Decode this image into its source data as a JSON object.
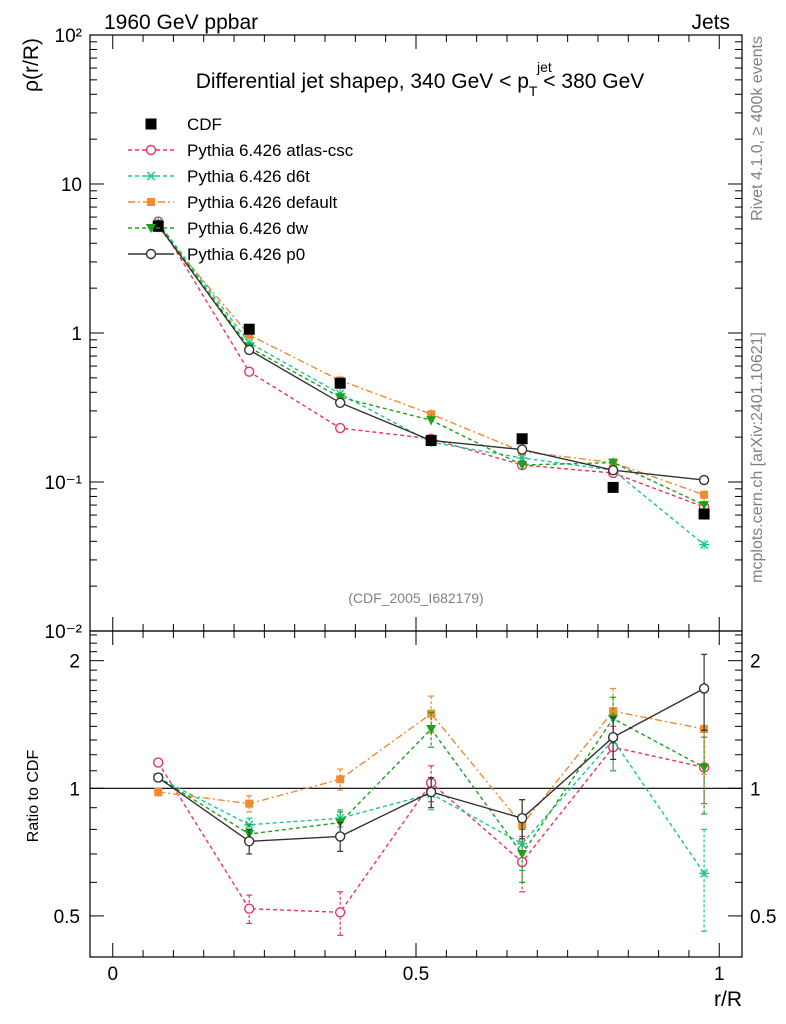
{
  "header": {
    "left": "1960 GeV ppbar",
    "right": "Jets",
    "side_top": "Rivet 4.1.0, ≥ 400k events",
    "side_bottom": "mcplots.cern.ch [arXiv:2401.10621]"
  },
  "chart_data": {
    "type": "line",
    "title": "Differential jet shapeρ, 340 GeV < p",
    "title_sup": "jet",
    "title_sub": "T",
    "title_end": " < 380 GeV",
    "analysis_tag": "(CDF_2005_I682179)",
    "xlabel": "r/R",
    "ylabel": "ρ(r/R)",
    "ratio_ylabel": "Ratio to CDF",
    "x": [
      0.075,
      0.225,
      0.375,
      0.525,
      0.675,
      0.825,
      0.975
    ],
    "xlim": [
      -0.0375,
      1.0375
    ],
    "ylim": [
      0.01,
      100
    ],
    "ratio_ylim": [
      0.4,
      2.35
    ],
    "x_ticks": [
      "0",
      "0.5",
      "1"
    ],
    "x_tick_values": [
      0,
      0.5,
      1
    ],
    "y_ticks": [
      "10⁻²",
      "10⁻¹",
      "1",
      "10",
      "10²"
    ],
    "y_tick_values": [
      0.01,
      0.1,
      1,
      10,
      100
    ],
    "ratio_ticks": [
      "0.5",
      "1",
      "2"
    ],
    "ratio_tick_values": [
      0.5,
      1,
      2
    ],
    "data": {
      "name": "CDF",
      "values": [
        5.2,
        1.06,
        0.46,
        0.19,
        0.195,
        0.092,
        0.061
      ]
    },
    "series": [
      {
        "name": "Pythia 6.426 atlas-csc",
        "color": "#e8355a",
        "dash": "4,3",
        "marker": "circle-open",
        "values": [
          5.6,
          0.55,
          0.23,
          0.195,
          0.13,
          0.115,
          0.068
        ],
        "ratio": [
          1.15,
          0.52,
          0.51,
          1.03,
          0.67,
          1.25,
          1.12
        ],
        "ratio_err": [
          0.02,
          0.04,
          0.06,
          0.1,
          0.1,
          0.15,
          0.2
        ]
      },
      {
        "name": "Pythia 6.426 d6t",
        "color": "#18c890",
        "dash": "4,3",
        "marker": "star",
        "values": [
          5.5,
          0.86,
          0.39,
          0.185,
          0.145,
          0.12,
          0.038
        ],
        "ratio": [
          1.06,
          0.82,
          0.85,
          0.97,
          0.74,
          1.3,
          0.63
        ],
        "ratio_err": [
          0.02,
          0.03,
          0.04,
          0.08,
          0.1,
          0.2,
          0.17
        ]
      },
      {
        "name": "Pythia 6.426 default",
        "color": "#f28a30",
        "dash": "7,3,2,3",
        "marker": "square",
        "values": [
          5.1,
          0.97,
          0.48,
          0.285,
          0.16,
          0.135,
          0.082
        ],
        "ratio": [
          0.98,
          0.92,
          1.05,
          1.5,
          0.82,
          1.52,
          1.38
        ],
        "ratio_err": [
          0.02,
          0.04,
          0.06,
          0.15,
          0.12,
          0.2,
          0.3
        ]
      },
      {
        "name": "Pythia 6.426 dw",
        "color": "#1ea01e",
        "dash": "4,3",
        "marker": "triangle-down",
        "values": [
          5.4,
          0.8,
          0.37,
          0.26,
          0.13,
          0.135,
          0.07
        ],
        "ratio": [
          1.06,
          0.78,
          0.83,
          1.38,
          0.7,
          1.46,
          1.12
        ],
        "ratio_err": [
          0.02,
          0.04,
          0.05,
          0.13,
          0.1,
          0.18,
          0.25
        ]
      },
      {
        "name": "Pythia 6.426 p0",
        "color": "#333333",
        "dash": "",
        "marker": "circle-open",
        "values": [
          5.3,
          0.77,
          0.34,
          0.19,
          0.165,
          0.12,
          0.103
        ],
        "ratio": [
          1.06,
          0.75,
          0.77,
          0.98,
          0.85,
          1.32,
          1.72
        ],
        "ratio_err": [
          0.02,
          0.05,
          0.06,
          0.08,
          0.09,
          0.15,
          0.35
        ]
      }
    ]
  }
}
